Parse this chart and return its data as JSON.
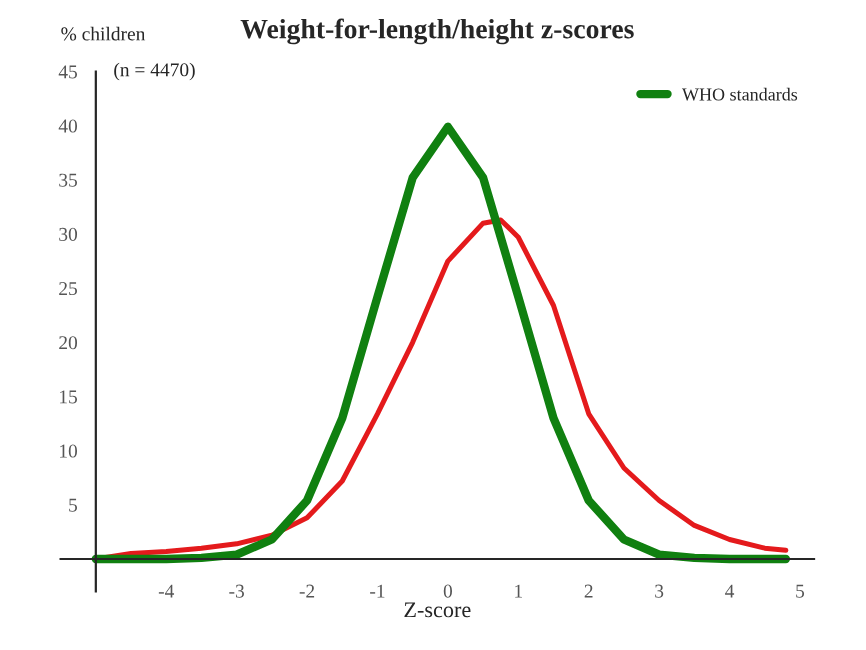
{
  "chart_data": {
    "type": "line",
    "title": "Weight-for-length/height z-scores",
    "ylabel": "% children",
    "xlabel": "Z-score",
    "annotations": [
      "(n = 4470)"
    ],
    "series": [
      {
        "color": "#e41a1c",
        "x": [
          -5,
          -4.5,
          -4,
          -3.5,
          -3,
          -2.5,
          -2,
          -1.5,
          -1,
          -0.5,
          0,
          0.5,
          0.75,
          1,
          1.5,
          2,
          2.5,
          3,
          3.5,
          4,
          4.5,
          4.8
        ],
        "values": [
          0,
          0.5,
          0.7,
          1.0,
          1.4,
          2.2,
          3.8,
          7.2,
          13.4,
          20,
          27.5,
          31,
          31.3,
          29.7,
          23.4,
          13.4,
          8.4,
          5.4,
          3.1,
          1.8,
          1.0,
          0.8
        ]
      },
      {
        "name": "WHO standards",
        "color": "#108010",
        "x": [
          -5,
          -4,
          -3.5,
          -3,
          -2.5,
          -2,
          -1.5,
          -1,
          -0.5,
          0,
          0.5,
          1,
          1.5,
          2,
          2.5,
          3,
          3.5,
          4,
          4.8
        ],
        "values": [
          0,
          0,
          0.1,
          0.4,
          1.8,
          5.4,
          13,
          24.2,
          35.2,
          39.9,
          35.2,
          24.2,
          13,
          5.4,
          1.8,
          0.4,
          0.1,
          0,
          0
        ]
      }
    ],
    "xlim": [
      -5.5,
      5.2
    ],
    "ylim": [
      -3,
      45
    ],
    "xticks": [
      -4,
      -3,
      -2,
      -1,
      0,
      1,
      2,
      3,
      4,
      5
    ],
    "yticks": [
      5,
      10,
      15,
      20,
      25,
      30,
      35,
      40,
      45
    ],
    "legend": "top right",
    "grid": false,
    "marker": "none",
    "line_style": "solid"
  }
}
